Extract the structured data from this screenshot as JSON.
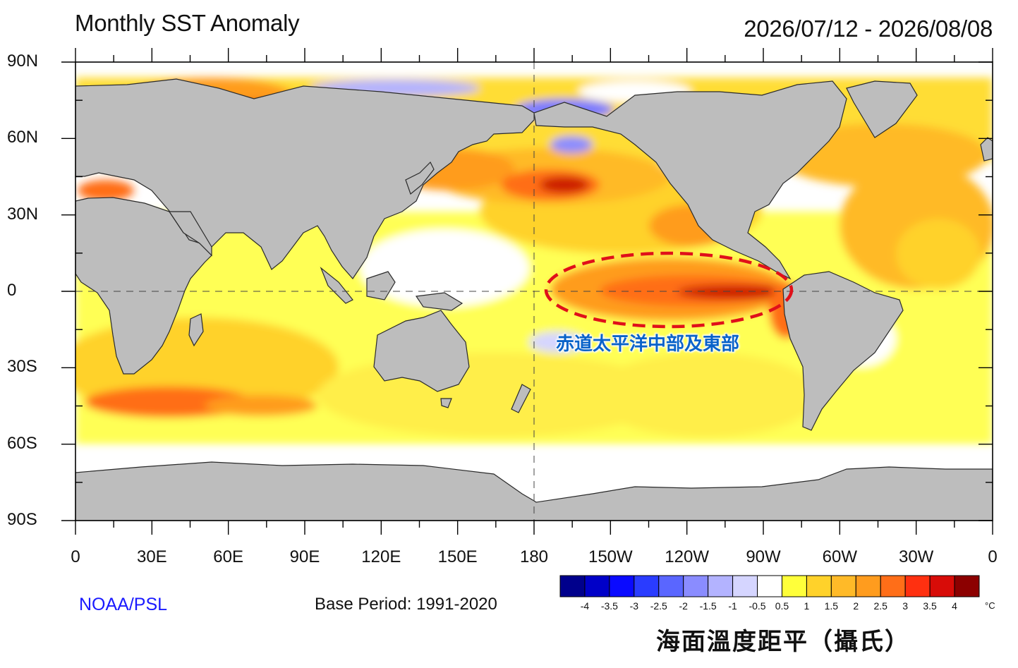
{
  "title": "Monthly SST Anomaly",
  "date_range": "2026/07/12 - 2026/08/08",
  "lat_labels": [
    "90N",
    "60N",
    "30N",
    "0",
    "30S",
    "60S",
    "90S"
  ],
  "lon_labels": [
    "0",
    "30E",
    "60E",
    "90E",
    "120E",
    "150E",
    "180",
    "150W",
    "120W",
    "90W",
    "60W",
    "30W",
    "0"
  ],
  "source": "NOAA/PSL",
  "base_period": "Base Period: 1991-2020",
  "colorbar": {
    "labels": [
      "-4",
      "-3.5",
      "-3",
      "-2.5",
      "-2",
      "-1.5",
      "-1",
      "-0.5",
      "0.5",
      "1",
      "1.5",
      "2",
      "2.5",
      "3",
      "3.5",
      "4"
    ],
    "colors": [
      "#00008c",
      "#0000c8",
      "#0a0aff",
      "#2a3cff",
      "#5a66ff",
      "#8a8cff",
      "#b3b3ff",
      "#d5d5ff",
      "#ffffff",
      "#ffff3a",
      "#ffd22a",
      "#ffba28",
      "#ff9c1e",
      "#ff6e18",
      "#ff3010",
      "#d80c08",
      "#8c0000"
    ],
    "unit": "°C"
  },
  "legend_title": "海面溫度距平（攝氏）",
  "highlight": {
    "label": "赤道太平洋中部及東部",
    "outline_color": "#e0101a",
    "label_color": "#0a63c9"
  },
  "colors": {
    "land": "#bdbdbd",
    "coast": "#2a2a2a",
    "warm_anomaly": "#ffd22a",
    "strong_warm": "#cc1a05",
    "cool_anomaly": "#7a7aff"
  }
}
